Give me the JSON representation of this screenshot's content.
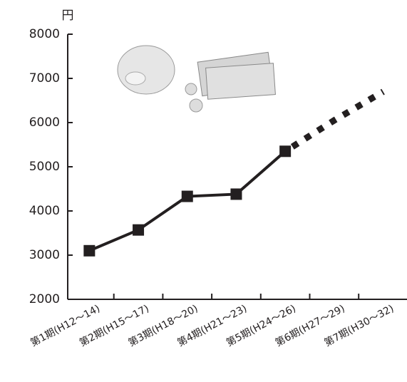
{
  "chart_data": {
    "type": "line",
    "unit_label": "円",
    "categories": [
      "第1期(H12～14)",
      "第2期(H15～17)",
      "第3期(H18～20)",
      "第4期(H21～23)",
      "第5期(H24～26)",
      "第6期(H27～29)",
      "第7期(H30～32)"
    ],
    "series": [
      {
        "color": "#231f20",
        "values": [
          3100,
          3570,
          4330,
          4380,
          5350,
          null,
          null
        ]
      },
      {
        "color": "#231f20",
        "style": "dotted",
        "values": [
          null,
          null,
          null,
          null,
          null,
          6050,
          6700
        ]
      }
    ],
    "ylim": [
      2000,
      8000
    ],
    "yticks": [
      2000,
      3000,
      4000,
      5000,
      6000,
      7000,
      8000
    ]
  }
}
